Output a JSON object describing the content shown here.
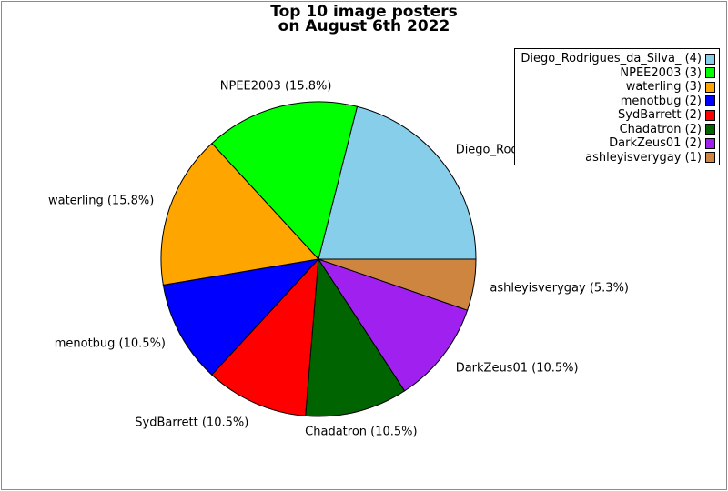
{
  "chart_data": {
    "type": "pie",
    "title_line1": "Top 10 image posters",
    "title_line2": "on August 6th 2022",
    "total_count": 19,
    "start_angle_deg": 0,
    "direction": "counterclockwise",
    "legend_position": "upper right",
    "edge_color": "#000000",
    "background_color": "#ffffff",
    "figure_border_color": "#8c8c8c",
    "slices": [
      {
        "name": "Diego_Rodrigues_da_Silva_",
        "count": 4,
        "pct": 21.1,
        "pct_label": "21.1%",
        "label": "Diego_Rodrigues_da_Silva_ (21.1%)",
        "legend_label": "Diego_Rodrigues_da_Silva_ (4)",
        "color": "#87CEEB"
      },
      {
        "name": "NPEE2003",
        "count": 3,
        "pct": 15.8,
        "pct_label": "15.8%",
        "label": "NPEE2003 (15.8%)",
        "legend_label": "NPEE2003 (3)",
        "color": "#00FF00"
      },
      {
        "name": "waterling",
        "count": 3,
        "pct": 15.8,
        "pct_label": "15.8%",
        "label": "waterling (15.8%)",
        "legend_label": "waterling (3)",
        "color": "#FFA500"
      },
      {
        "name": "menotbug",
        "count": 2,
        "pct": 10.5,
        "pct_label": "10.5%",
        "label": "menotbug (10.5%)",
        "legend_label": "menotbug (2)",
        "color": "#0000FF"
      },
      {
        "name": "SydBarrett",
        "count": 2,
        "pct": 10.5,
        "pct_label": "10.5%",
        "label": "SydBarrett (10.5%)",
        "legend_label": "SydBarrett (2)",
        "color": "#FF0000"
      },
      {
        "name": "Chadatron",
        "count": 2,
        "pct": 10.5,
        "pct_label": "10.5%",
        "label": "Chadatron (10.5%)",
        "legend_label": "Chadatron (2)",
        "color": "#006400"
      },
      {
        "name": "DarkZeus01",
        "count": 2,
        "pct": 10.5,
        "pct_label": "10.5%",
        "label": "DarkZeus01 (10.5%)",
        "legend_label": "DarkZeus01 (2)",
        "color": "#A020F0"
      },
      {
        "name": "ashleyisverygay",
        "count": 1,
        "pct": 5.3,
        "pct_label": "5.3%",
        "label": "ashleyisverygay (5.3%)",
        "legend_label": "ashleyisverygay (1)",
        "color": "#CD853F"
      }
    ]
  }
}
